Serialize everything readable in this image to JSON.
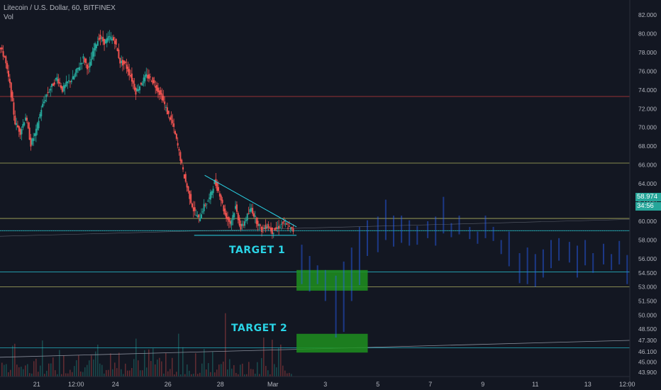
{
  "header": {
    "symbol_title": "Litecoin / U.S. Dollar, 60, BITFINEX",
    "volume_label": "Vol"
  },
  "annotations": {
    "target1": "TARGET 1",
    "target2": "TARGET 2"
  },
  "price_tags": {
    "last_price": "58.974",
    "countdown": "34:56"
  },
  "colors": {
    "background": "#131722",
    "up": "#26a69a",
    "down": "#ef5350",
    "target_box": "#1f8f1f",
    "target_text": "#2ad4e6",
    "trendline": "#2ad4e6",
    "resistance_red": "#c23b3b",
    "level_yellow": "#c8c86a",
    "ghost_bars": "#2962ff"
  },
  "chart_data": {
    "type": "candlestick",
    "title": "Litecoin / U.S. Dollar, 60, BITFINEX",
    "ylim": [
      43.9,
      81.9
    ],
    "y_ticks": [
      "82.000",
      "80.000",
      "78.000",
      "76.000",
      "74.000",
      "72.000",
      "70.000",
      "68.000",
      "66.000",
      "64.000",
      "62.000",
      "60.000",
      "58.000",
      "56.000",
      "54.500",
      "53.000",
      "51.500",
      "50.000",
      "48.500",
      "47.300",
      "46.100",
      "45.000",
      "43.900"
    ],
    "y_tick_values": [
      82,
      80,
      78,
      76,
      74,
      72,
      70,
      68,
      66,
      64,
      62,
      60,
      58,
      56,
      54.5,
      53,
      51.5,
      50,
      48.5,
      47.3,
      46.1,
      45,
      43.9
    ],
    "x_ticks": [
      "21",
      "12:00",
      "24",
      "26",
      "28",
      "Mar",
      "3",
      "5",
      "7",
      "9",
      "11",
      "13",
      "12:00"
    ],
    "x_tick_days": [
      21,
      22.5,
      24,
      26,
      28,
      30,
      32,
      34,
      36,
      38,
      40,
      42,
      43.5
    ],
    "x_range_days": [
      19.6,
      43.6
    ],
    "horizontal_levels": [
      {
        "price": 73.3,
        "color": "red"
      },
      {
        "price": 66.2,
        "color": "yellow"
      },
      {
        "price": 60.3,
        "color": "yellow"
      },
      {
        "price": 59.0,
        "color": "cyan"
      },
      {
        "price": 54.6,
        "color": "cyan"
      },
      {
        "price": 53.0,
        "color": "yellow"
      },
      {
        "price": 46.5,
        "color": "cyan"
      }
    ],
    "triangle": {
      "upper": [
        [
          27.4,
          64.9
        ],
        [
          30.9,
          59.4
        ]
      ],
      "lower": [
        [
          27.0,
          58.5
        ],
        [
          30.9,
          58.5
        ]
      ]
    },
    "target_zones": [
      {
        "label": "TARGET 1",
        "x": [
          30.9,
          32.1
        ],
        "price": [
          52.6,
          54.8
        ]
      },
      {
        "label": "TARGET 2",
        "x": [
          30.9,
          32.1
        ],
        "price": [
          46.0,
          48.0
        ]
      }
    ],
    "ohlc_path": [
      [
        19.6,
        78.6
      ],
      [
        19.8,
        77.5
      ],
      [
        20.0,
        74.5
      ],
      [
        20.2,
        70.5
      ],
      [
        20.4,
        69.5
      ],
      [
        20.6,
        71.2
      ],
      [
        20.8,
        68.2
      ],
      [
        21.0,
        69.6
      ],
      [
        21.2,
        72.0
      ],
      [
        21.4,
        73.5
      ],
      [
        21.6,
        74.4
      ],
      [
        21.8,
        75.3
      ],
      [
        22.0,
        74.0
      ],
      [
        22.2,
        74.8
      ],
      [
        22.4,
        75.2
      ],
      [
        22.6,
        76.3
      ],
      [
        22.8,
        77.4
      ],
      [
        23.0,
        76.2
      ],
      [
        23.2,
        78.4
      ],
      [
        23.4,
        79.6
      ],
      [
        23.6,
        79.1
      ],
      [
        23.8,
        79.6
      ],
      [
        24.0,
        79.2
      ],
      [
        24.2,
        77.0
      ],
      [
        24.4,
        76.7
      ],
      [
        24.6,
        75.5
      ],
      [
        24.8,
        73.8
      ],
      [
        25.0,
        74.7
      ],
      [
        25.2,
        75.5
      ],
      [
        25.4,
        75.1
      ],
      [
        25.6,
        74.2
      ],
      [
        25.8,
        73.2
      ],
      [
        26.0,
        71.6
      ],
      [
        26.2,
        70.4
      ],
      [
        26.4,
        68.0
      ],
      [
        26.6,
        65.3
      ],
      [
        26.8,
        63.1
      ],
      [
        27.0,
        61.2
      ],
      [
        27.2,
        60.2
      ],
      [
        27.4,
        61.6
      ],
      [
        27.6,
        62.4
      ],
      [
        27.8,
        64.2
      ],
      [
        28.0,
        62.9
      ],
      [
        28.2,
        60.7
      ],
      [
        28.4,
        59.8
      ],
      [
        28.6,
        61.5
      ],
      [
        28.8,
        59.2
      ],
      [
        29.0,
        60.3
      ],
      [
        29.2,
        61.4
      ],
      [
        29.4,
        60.0
      ],
      [
        29.6,
        59.1
      ],
      [
        29.8,
        59.6
      ],
      [
        30.0,
        58.9
      ],
      [
        30.2,
        59.3
      ],
      [
        30.4,
        59.8
      ],
      [
        30.6,
        59.4
      ],
      [
        30.8,
        58.974
      ]
    ],
    "projection_ranges": [
      [
        31.1,
        53.3,
        57.5
      ],
      [
        31.4,
        52.5,
        56.3
      ],
      [
        31.7,
        53.3,
        55.3
      ],
      [
        32.0,
        51.5,
        54.8
      ],
      [
        32.4,
        47.6,
        54.2
      ],
      [
        32.7,
        48.2,
        55.7
      ],
      [
        33.0,
        51.5,
        57.2
      ],
      [
        33.3,
        53.2,
        59.4
      ],
      [
        33.6,
        56.3,
        60.1
      ],
      [
        34.0,
        56.7,
        60.5
      ],
      [
        34.3,
        58.0,
        62.3
      ],
      [
        34.6,
        57.3,
        60.6
      ],
      [
        34.9,
        57.7,
        60.6
      ],
      [
        35.2,
        57.4,
        60.1
      ],
      [
        35.5,
        57.5,
        59.5
      ],
      [
        35.9,
        58.2,
        60.0
      ],
      [
        36.2,
        57.4,
        60.5
      ],
      [
        36.5,
        58.7,
        62.6
      ],
      [
        36.8,
        58.3,
        59.8
      ],
      [
        37.1,
        58.6,
        60.6
      ],
      [
        37.5,
        58.1,
        59.4
      ],
      [
        37.8,
        57.6,
        58.9
      ],
      [
        38.1,
        58.2,
        60.6
      ],
      [
        38.4,
        57.9,
        59.4
      ],
      [
        38.7,
        56.5,
        58.0
      ],
      [
        39.0,
        55.2,
        58.9
      ],
      [
        39.4,
        53.4,
        56.6
      ],
      [
        39.7,
        53.3,
        57.2
      ],
      [
        40.0,
        53.0,
        56.5
      ],
      [
        40.3,
        54.0,
        57.0
      ],
      [
        40.6,
        55.0,
        58.0
      ],
      [
        40.9,
        55.8,
        58.2
      ],
      [
        41.3,
        55.6,
        57.8
      ],
      [
        41.6,
        54.0,
        57.4
      ],
      [
        41.9,
        55.3,
        58.0
      ],
      [
        42.2,
        54.5,
        56.6
      ],
      [
        42.6,
        55.4,
        57.6
      ],
      [
        42.9,
        54.8,
        56.5
      ],
      [
        43.2,
        55.4,
        57.9
      ],
      [
        43.5,
        53.3,
        56.4
      ]
    ]
  }
}
